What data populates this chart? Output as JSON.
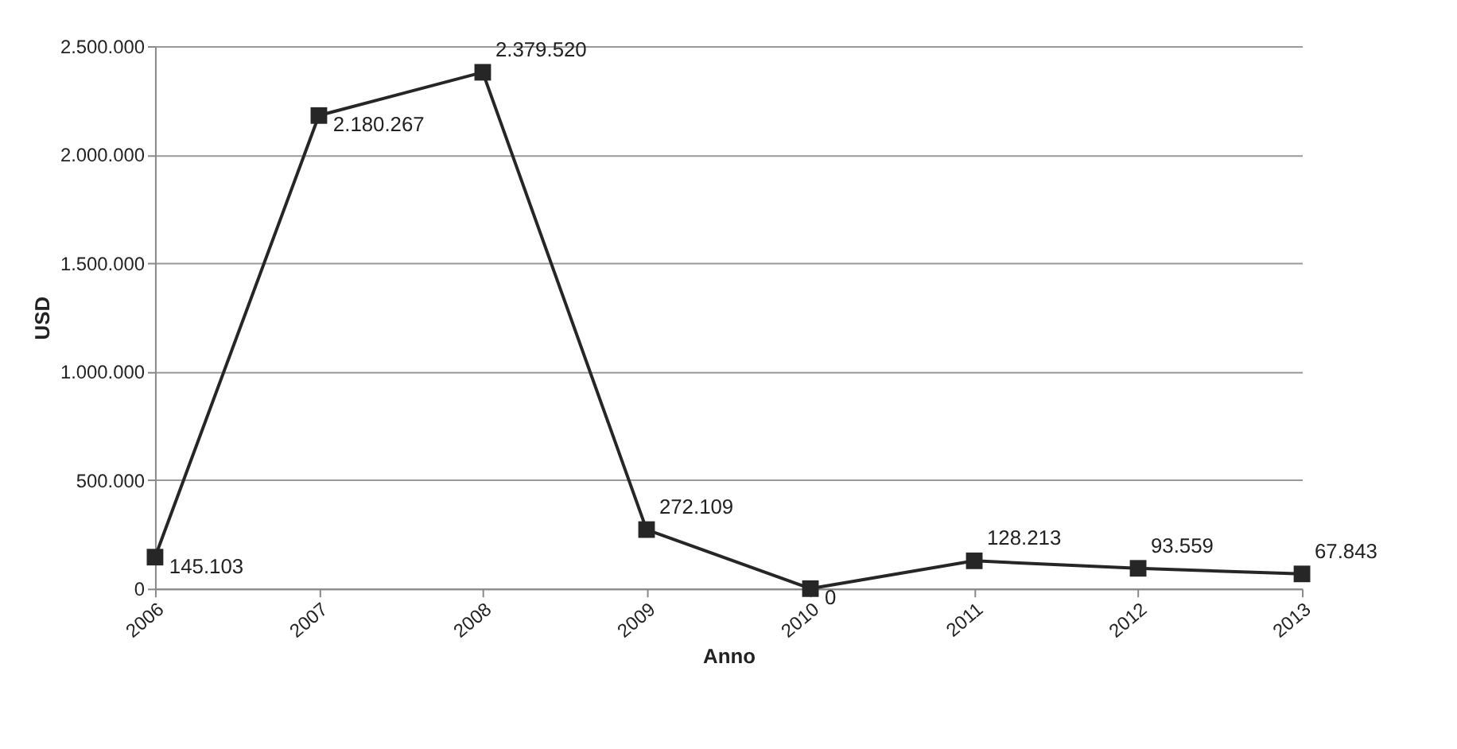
{
  "chart_data": {
    "type": "line",
    "xlabel": "Anno",
    "ylabel": "USD",
    "categories": [
      "2006",
      "2007",
      "2008",
      "2009",
      "2010",
      "2011",
      "2012",
      "2013"
    ],
    "series": [
      {
        "color": "#262626",
        "values": [
          145103,
          2180267,
          2379520,
          272109,
          0,
          128213,
          93559,
          67843
        ],
        "value_labels": [
          "145.103",
          "2.180.267",
          "2.379.520",
          "272.109",
          "0",
          "128.213",
          "93.559",
          "67.843"
        ]
      }
    ],
    "ylim": [
      0,
      2500000
    ],
    "yticks": [
      {
        "value": 0,
        "label": "0"
      },
      {
        "value": 500000,
        "label": "500.000"
      },
      {
        "value": 1000000,
        "label": "1.000.000"
      },
      {
        "value": 1500000,
        "label": "1.500.000"
      },
      {
        "value": 2000000,
        "label": "2.000.000"
      },
      {
        "value": 2500000,
        "label": "2.500.000"
      }
    ],
    "grid": "y",
    "legend": false,
    "marker": "square",
    "line_style": "solid"
  }
}
